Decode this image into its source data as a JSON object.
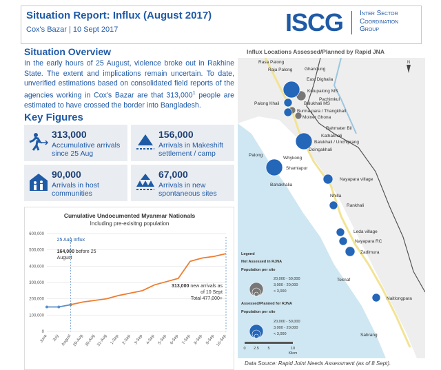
{
  "header": {
    "title": "Situation Report: Influx (August 2017)",
    "subtitle": "Cox's Bazar | 10 Sept 2017",
    "logo": "ISCG",
    "logo_lines": [
      "Inter Sector",
      "Coordination",
      "Group"
    ]
  },
  "overview": {
    "heading": "Situation Overview",
    "text": "In the early hours of 25 August, violence broke out in Rakhine State. The extent and implications remain uncertain. To date, unverified estimations based on consolidated field reports of the agencies working in Cox's Bazar are that 313,000",
    "sup": "1",
    "text_end": " people are estimated to have crossed the border into Bangladesh."
  },
  "key_figures": {
    "heading": "Key Figures",
    "items": [
      {
        "value": "313,000",
        "label": "Accumulative arrivals since 25 Aug"
      },
      {
        "value": "156,000",
        "label": "Arrivals in Makeshift settlement / camp"
      },
      {
        "value": "90,000",
        "label": "Arrivals in host communities"
      },
      {
        "value": "67,000",
        "label": "Arrivals in new spontaneous sites"
      }
    ]
  },
  "chart": {
    "type": "line",
    "title": "Cumulative Undocumented Myanmar Nationals",
    "subtitle": "Including pre-exisitng population",
    "categories": [
      "June",
      "July",
      "August",
      "29-Aug",
      "30-Aug",
      "31-Aug",
      "1-Sep",
      "2-Sep",
      "3-Sep",
      "4-Sep",
      "5-Sep",
      "6-Sep",
      "7-Sep",
      "8-Sep",
      "9-Sep",
      "10-Sep"
    ],
    "series": [
      {
        "color": "#5b8fc9",
        "values": [
          150000,
          150000,
          164000,
          null,
          null,
          null,
          null,
          null,
          null,
          null,
          null,
          null,
          null,
          null,
          null,
          null
        ]
      },
      {
        "color": "#ed7d31",
        "values": [
          null,
          null,
          164000,
          180000,
          190000,
          200000,
          220000,
          235000,
          250000,
          285000,
          305000,
          325000,
          430000,
          450000,
          460000,
          477000
        ]
      }
    ],
    "ylim": [
      0,
      600000
    ],
    "yticks": [
      0,
      {
        "value": 100000,
        "label": "100,000"
      },
      {
        "value": 200000,
        "label": "200,000"
      },
      {
        "value": 300000,
        "label": "300,000"
      },
      {
        "value": 400000,
        "label": "400,000"
      },
      {
        "value": 500000,
        "label": "500,000"
      },
      {
        "value": 600000,
        "label": "600,000"
      }
    ],
    "annotations": {
      "influx": "25 Aug Influx",
      "before_bold": "164,000",
      "before": "before 25 August",
      "new_bold": "313,000",
      "new": "new arrivals as of 10 Sept",
      "total": "Total 477,000+"
    }
  },
  "map": {
    "title": "Influx Locations Assessed/Planned by Rapid JNA",
    "north": "N",
    "places": [
      "Rasa Palong",
      "Raja Palong",
      "Ghandung",
      "East Dighalia",
      "Kutupalong MS",
      "Pachimkul",
      "Palong Khali",
      "Balukhali MS",
      "Burma para / Thangkhali",
      "Moiner Ghona",
      "Rahmater Bil",
      "Kathakhali",
      "Balukhali / Unchiprang",
      "Doingakhali",
      "Palong",
      "Whykong",
      "Shamlapur",
      "Bahakhalia",
      "Nayapara village",
      "Nhilla",
      "Rankhali",
      "Leda village",
      "Nayapara RC",
      "Zadimura",
      "Teknaf",
      "Naitlongpara",
      "Sabrang"
    ],
    "legend": {
      "title": "Legend",
      "not_assessed": "Not Assessed in RJNA",
      "assessed": "Assessed/Planned for RJNA",
      "pop": "Population per site",
      "sizes": [
        "20,000 - 50,000",
        "3,000 - 20,000",
        "< 3,000"
      ]
    },
    "scale": [
      "0",
      "2.5",
      "5",
      "10"
    ],
    "scale_unit": "Kilom",
    "source": "Data Source: Rapid Joint Needs Assessment (as of 8 Sept)."
  }
}
